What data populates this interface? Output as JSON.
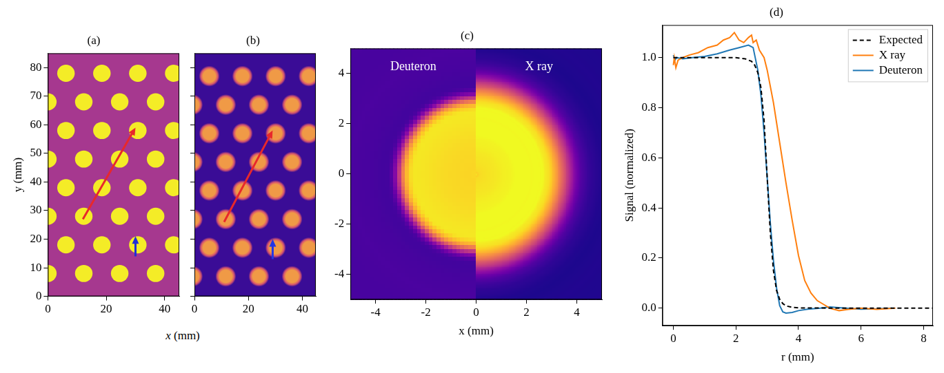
{
  "chart_data": [
    {
      "type": "image",
      "title": "(a)",
      "x_label": "x (mm)",
      "y_label": "y (mm)",
      "xlim": [
        0,
        45
      ],
      "ylim": [
        0,
        85
      ],
      "xticks": [
        0,
        20,
        40
      ],
      "yticks": [
        0,
        10,
        20,
        30,
        40,
        50,
        60,
        70,
        80
      ],
      "grid": false,
      "color": "#f4ec27",
      "dot_radius": 3,
      "dots": [
        [
          0,
          8
        ],
        [
          12.3,
          8
        ],
        [
          24.6,
          8
        ],
        [
          36.9,
          8
        ],
        [
          6.2,
          18
        ],
        [
          18.5,
          18
        ],
        [
          30.8,
          18
        ],
        [
          43.1,
          18
        ],
        [
          0,
          28
        ],
        [
          12.3,
          28
        ],
        [
          24.6,
          28
        ],
        [
          36.9,
          28
        ],
        [
          6.2,
          38
        ],
        [
          18.5,
          38
        ],
        [
          30.8,
          38
        ],
        [
          43.1,
          38
        ],
        [
          0,
          48
        ],
        [
          12.3,
          48
        ],
        [
          24.6,
          48
        ],
        [
          36.9,
          48
        ],
        [
          6.2,
          58
        ],
        [
          18.5,
          58
        ],
        [
          30.8,
          58
        ],
        [
          43.1,
          58
        ],
        [
          0,
          68
        ],
        [
          12.3,
          68
        ],
        [
          24.6,
          68
        ],
        [
          36.9,
          68
        ],
        [
          6.2,
          78
        ],
        [
          18.5,
          78
        ],
        [
          30.8,
          78
        ],
        [
          43.1,
          78
        ]
      ],
      "arrows": [
        {
          "from": [
            12,
            27
          ],
          "to": [
            30,
            59
          ],
          "color": "#e8282b"
        },
        {
          "from": [
            30,
            14
          ],
          "to": [
            30,
            21
          ],
          "color": "#1f2fd6"
        }
      ]
    },
    {
      "type": "image",
      "title": "(b)",
      "xlim": [
        0,
        45
      ],
      "ylim": [
        0,
        85
      ],
      "xticks": [
        0,
        20,
        40
      ],
      "yticks": [
        0,
        10,
        20,
        30,
        40,
        50,
        60,
        70,
        80
      ],
      "grid": false,
      "tick_labels": "x",
      "color": "#f09a46",
      "dot_radius": 3,
      "dots": [
        [
          -0.7,
          7
        ],
        [
          11.6,
          7
        ],
        [
          23.9,
          7
        ],
        [
          36.2,
          7
        ],
        [
          5.5,
          17
        ],
        [
          17.8,
          17
        ],
        [
          30.1,
          17
        ],
        [
          42.4,
          17
        ],
        [
          -0.7,
          27
        ],
        [
          11.6,
          27
        ],
        [
          23.9,
          27
        ],
        [
          36.2,
          27
        ],
        [
          5.5,
          37
        ],
        [
          17.8,
          37
        ],
        [
          30.1,
          37
        ],
        [
          42.4,
          37
        ],
        [
          -0.7,
          47
        ],
        [
          11.6,
          47
        ],
        [
          23.9,
          47
        ],
        [
          36.2,
          47
        ],
        [
          5.5,
          57
        ],
        [
          17.8,
          57
        ],
        [
          30.1,
          57
        ],
        [
          42.4,
          57
        ],
        [
          -0.7,
          67
        ],
        [
          11.6,
          67
        ],
        [
          23.9,
          67
        ],
        [
          36.2,
          67
        ],
        [
          5.5,
          77
        ],
        [
          17.8,
          77
        ],
        [
          30.1,
          77
        ],
        [
          42.4,
          77
        ]
      ],
      "arrows": [
        {
          "from": [
            11,
            26
          ],
          "to": [
            29,
            58
          ],
          "color": "#e8282b"
        },
        {
          "from": [
            29,
            13
          ],
          "to": [
            29,
            20
          ],
          "color": "#2236e6"
        }
      ]
    },
    {
      "type": "image",
      "title": "(c)",
      "x_label": "x (mm)",
      "xlim": [
        -5,
        5
      ],
      "ylim": [
        -5,
        5
      ],
      "xticks": [
        -4,
        -2,
        0,
        2,
        4
      ],
      "yticks": [
        -4,
        -2,
        0,
        2,
        4
      ],
      "grid": false,
      "annotations": [
        "Deuteron",
        "X ray"
      ]
    },
    {
      "type": "line",
      "title": "(d)",
      "x_label": "r (mm)",
      "y_label": "Signal (normalized)",
      "xlim": [
        -0.35,
        8.3
      ],
      "ylim": [
        -0.07,
        1.13
      ],
      "xticks": [
        0,
        2,
        4,
        6,
        8
      ],
      "yticks": [
        {
          "value": 0,
          "label": "0.0"
        },
        0.2,
        0.4,
        0.6,
        0.8,
        {
          "value": 1,
          "label": "1.0"
        }
      ],
      "grid": false,
      "legend": "top right",
      "series": [
        {
          "name": "Expected",
          "color": "#000000",
          "line_style": "dashed",
          "x": [
            0,
            0.5,
            1,
            1.5,
            2,
            2.3,
            2.5,
            2.6,
            2.7,
            2.8,
            2.9,
            3.0,
            3.1,
            3.2,
            3.3,
            3.4,
            3.5,
            3.6,
            3.8,
            4,
            5,
            6,
            7,
            8.3
          ],
          "values": [
            1,
            1,
            1,
            1,
            1,
            0.995,
            0.985,
            0.97,
            0.94,
            0.88,
            0.75,
            0.52,
            0.3,
            0.15,
            0.07,
            0.035,
            0.018,
            0.009,
            0.003,
            0.001,
            0,
            0,
            0,
            0
          ]
        },
        {
          "name": "X ray",
          "color": "#ff7f0e",
          "line_style": "solid",
          "x": [
            0,
            0.03,
            0.08,
            0.15,
            0.3,
            0.5,
            0.8,
            1.1,
            1.4,
            1.6,
            1.8,
            1.95,
            2.1,
            2.25,
            2.4,
            2.5,
            2.55,
            2.65,
            2.75,
            2.9,
            3.0,
            3.2,
            3.4,
            3.6,
            3.8,
            4.0,
            4.2,
            4.4,
            4.6,
            4.8,
            5.0,
            5.3,
            5.6,
            6.0,
            6.5,
            7.1
          ],
          "values": [
            0.97,
            1.0,
            0.96,
            0.99,
            1.0,
            1.01,
            1.02,
            1.04,
            1.05,
            1.07,
            1.08,
            1.1,
            1.07,
            1.06,
            1.08,
            1.09,
            1.06,
            1.07,
            1.03,
            1.0,
            0.95,
            0.82,
            0.66,
            0.5,
            0.35,
            0.21,
            0.11,
            0.06,
            0.03,
            0.015,
            0.0,
            -0.01,
            -0.005,
            0.0,
            -0.005,
            0.0
          ]
        },
        {
          "name": "Deuteron",
          "color": "#1f77b4",
          "line_style": "solid",
          "x": [
            0,
            0.05,
            0.1,
            0.3,
            0.6,
            1.0,
            1.4,
            1.8,
            2.1,
            2.4,
            2.55,
            2.7,
            2.8,
            2.9,
            3.0,
            3.1,
            3.2,
            3.3,
            3.4,
            3.5,
            3.6,
            3.8,
            4.0,
            4.3,
            4.7,
            5.0,
            5.5,
            6.0,
            6.5,
            7.0
          ],
          "values": [
            1.01,
            0.99,
            1.0,
            0.995,
            1.0,
            1.005,
            1.015,
            1.03,
            1.04,
            1.05,
            1.04,
            0.95,
            0.85,
            0.7,
            0.52,
            0.34,
            0.19,
            0.08,
            0.01,
            -0.015,
            -0.02,
            -0.017,
            -0.01,
            -0.004,
            0.0,
            0.005,
            0.0,
            -0.004,
            -0.003,
            0.0
          ]
        }
      ]
    }
  ]
}
